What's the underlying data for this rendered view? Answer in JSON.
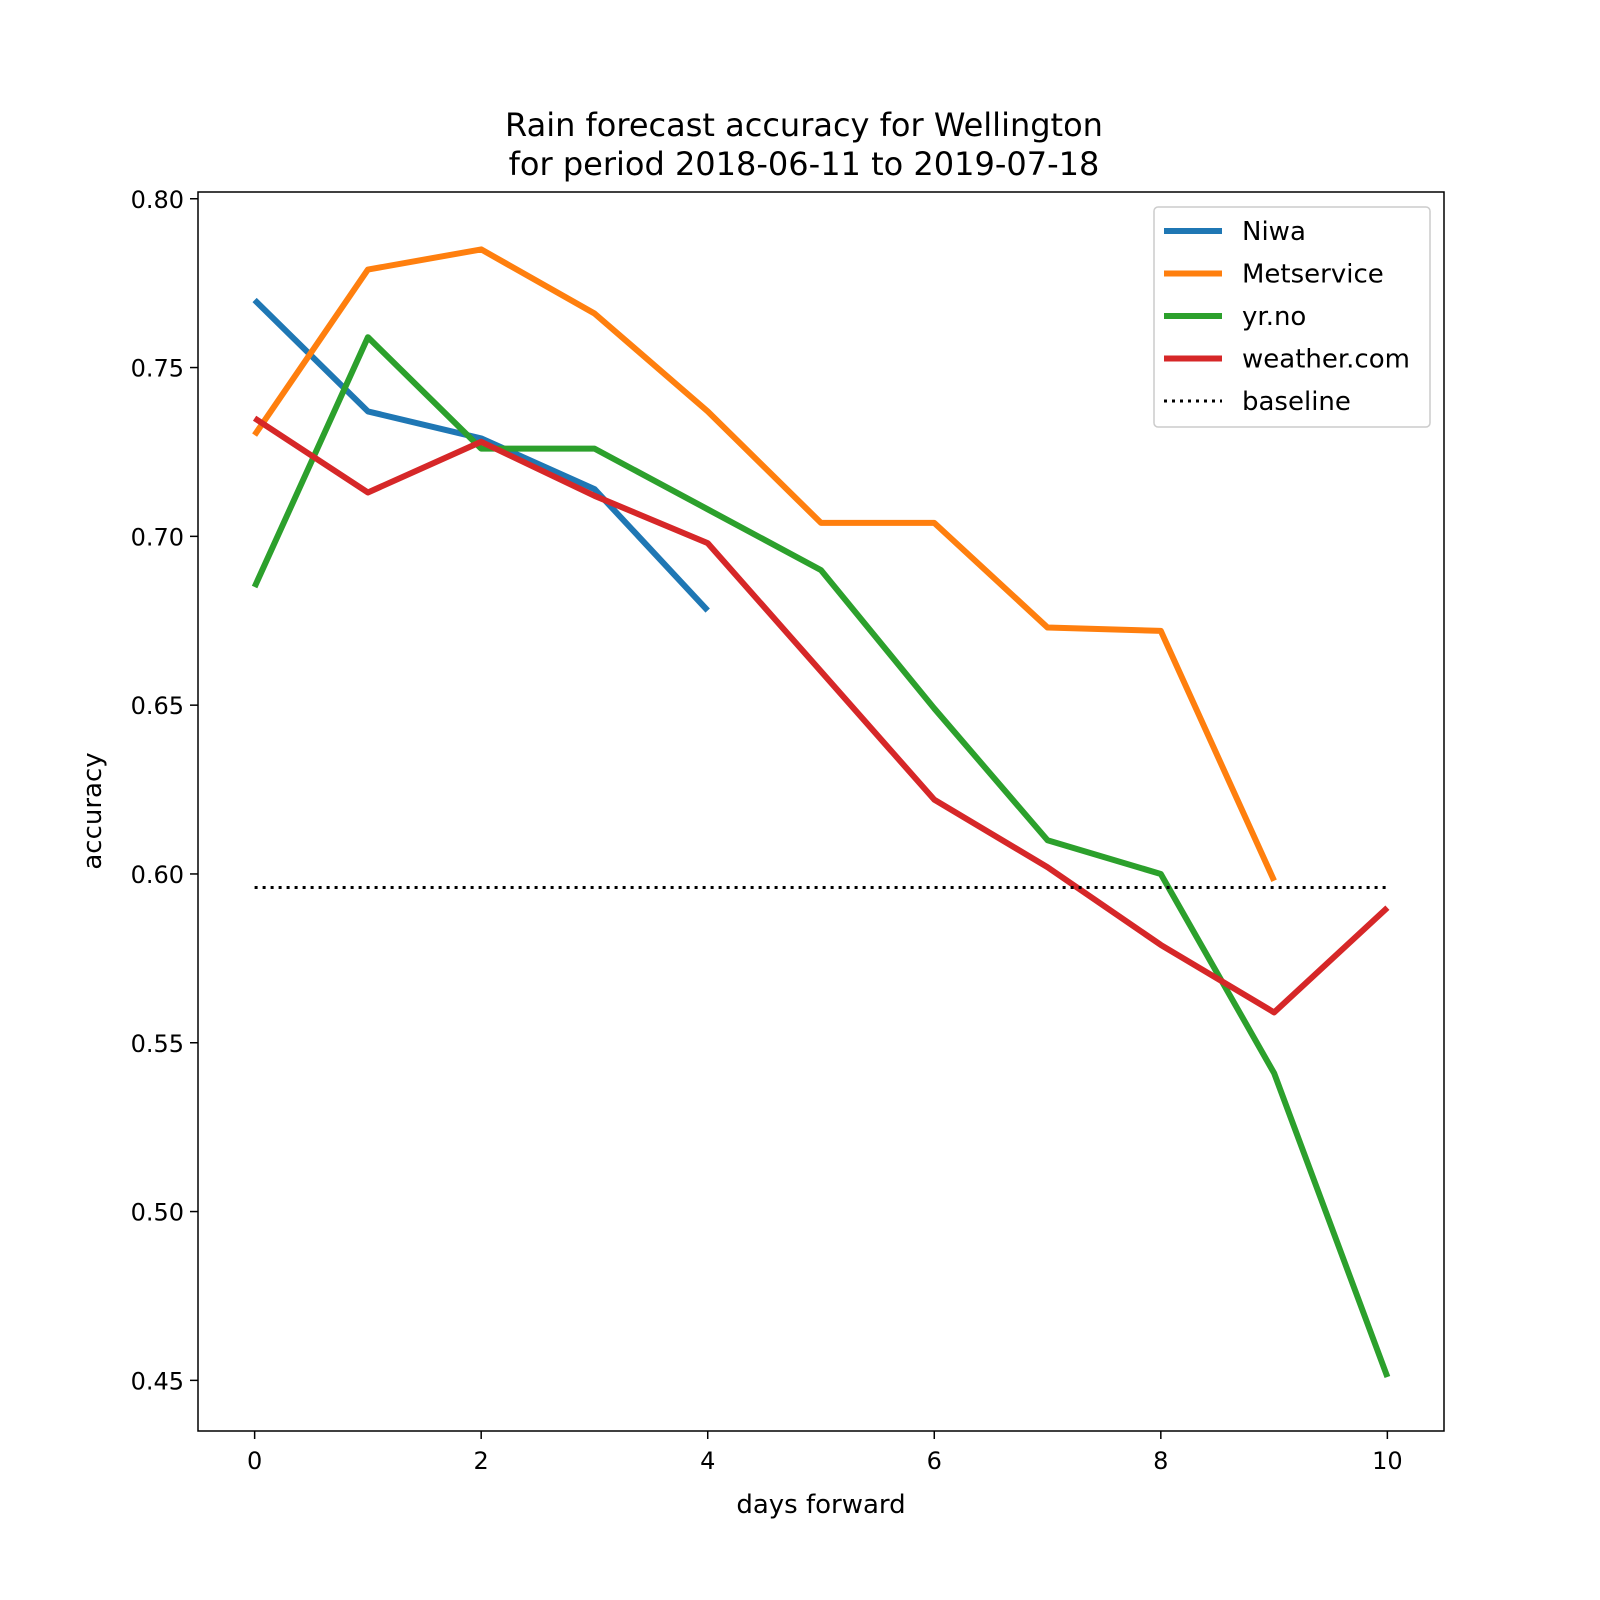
{
  "chart_data": {
    "type": "line",
    "title": "Rain forecast accuracy for Wellington",
    "subtitle": "for period 2018-06-11 to 2019-07-18",
    "xlabel": "days forward",
    "ylabel": "accuracy",
    "xlim": [
      -0.5,
      10.5
    ],
    "ylim": [
      0.435,
      0.802
    ],
    "xticks": [
      0,
      2,
      4,
      6,
      8,
      10
    ],
    "yticks": [
      0.45,
      0.5,
      0.55,
      0.6,
      0.65,
      0.7,
      0.75,
      0.8
    ],
    "ytick_labels": [
      "0.45",
      "0.50",
      "0.55",
      "0.60",
      "0.65",
      "0.70",
      "0.75",
      "0.80"
    ],
    "grid": false,
    "legend_position": "top-right",
    "series": [
      {
        "name": "Niwa",
        "color": "#1f77b4",
        "style": "solid",
        "x": [
          0,
          1,
          2,
          3,
          4
        ],
        "y": [
          0.77,
          0.737,
          0.729,
          0.714,
          0.678
        ]
      },
      {
        "name": "Metservice",
        "color": "#ff7f0e",
        "style": "solid",
        "x": [
          0,
          1,
          2,
          3,
          4,
          5,
          6,
          7,
          8,
          9
        ],
        "y": [
          0.73,
          0.779,
          0.785,
          0.766,
          0.737,
          0.704,
          0.704,
          0.673,
          0.672,
          0.598
        ]
      },
      {
        "name": "yr.no",
        "color": "#2ca02c",
        "style": "solid",
        "x": [
          0,
          1,
          2,
          3,
          4,
          5,
          6,
          7,
          8,
          9,
          10
        ],
        "y": [
          0.685,
          0.759,
          0.726,
          0.726,
          0.708,
          0.69,
          0.649,
          0.61,
          0.6,
          0.541,
          0.451
        ]
      },
      {
        "name": "weather.com",
        "color": "#d62728",
        "style": "solid",
        "x": [
          0,
          1,
          2,
          3,
          4,
          5,
          6,
          7,
          8,
          9,
          10
        ],
        "y": [
          0.735,
          0.713,
          0.728,
          0.712,
          0.698,
          0.66,
          0.622,
          0.602,
          0.579,
          0.559,
          0.59
        ]
      },
      {
        "name": "baseline",
        "color": "#000000",
        "style": "dotted",
        "x": [
          0,
          10
        ],
        "y": [
          0.596,
          0.596
        ]
      }
    ]
  }
}
